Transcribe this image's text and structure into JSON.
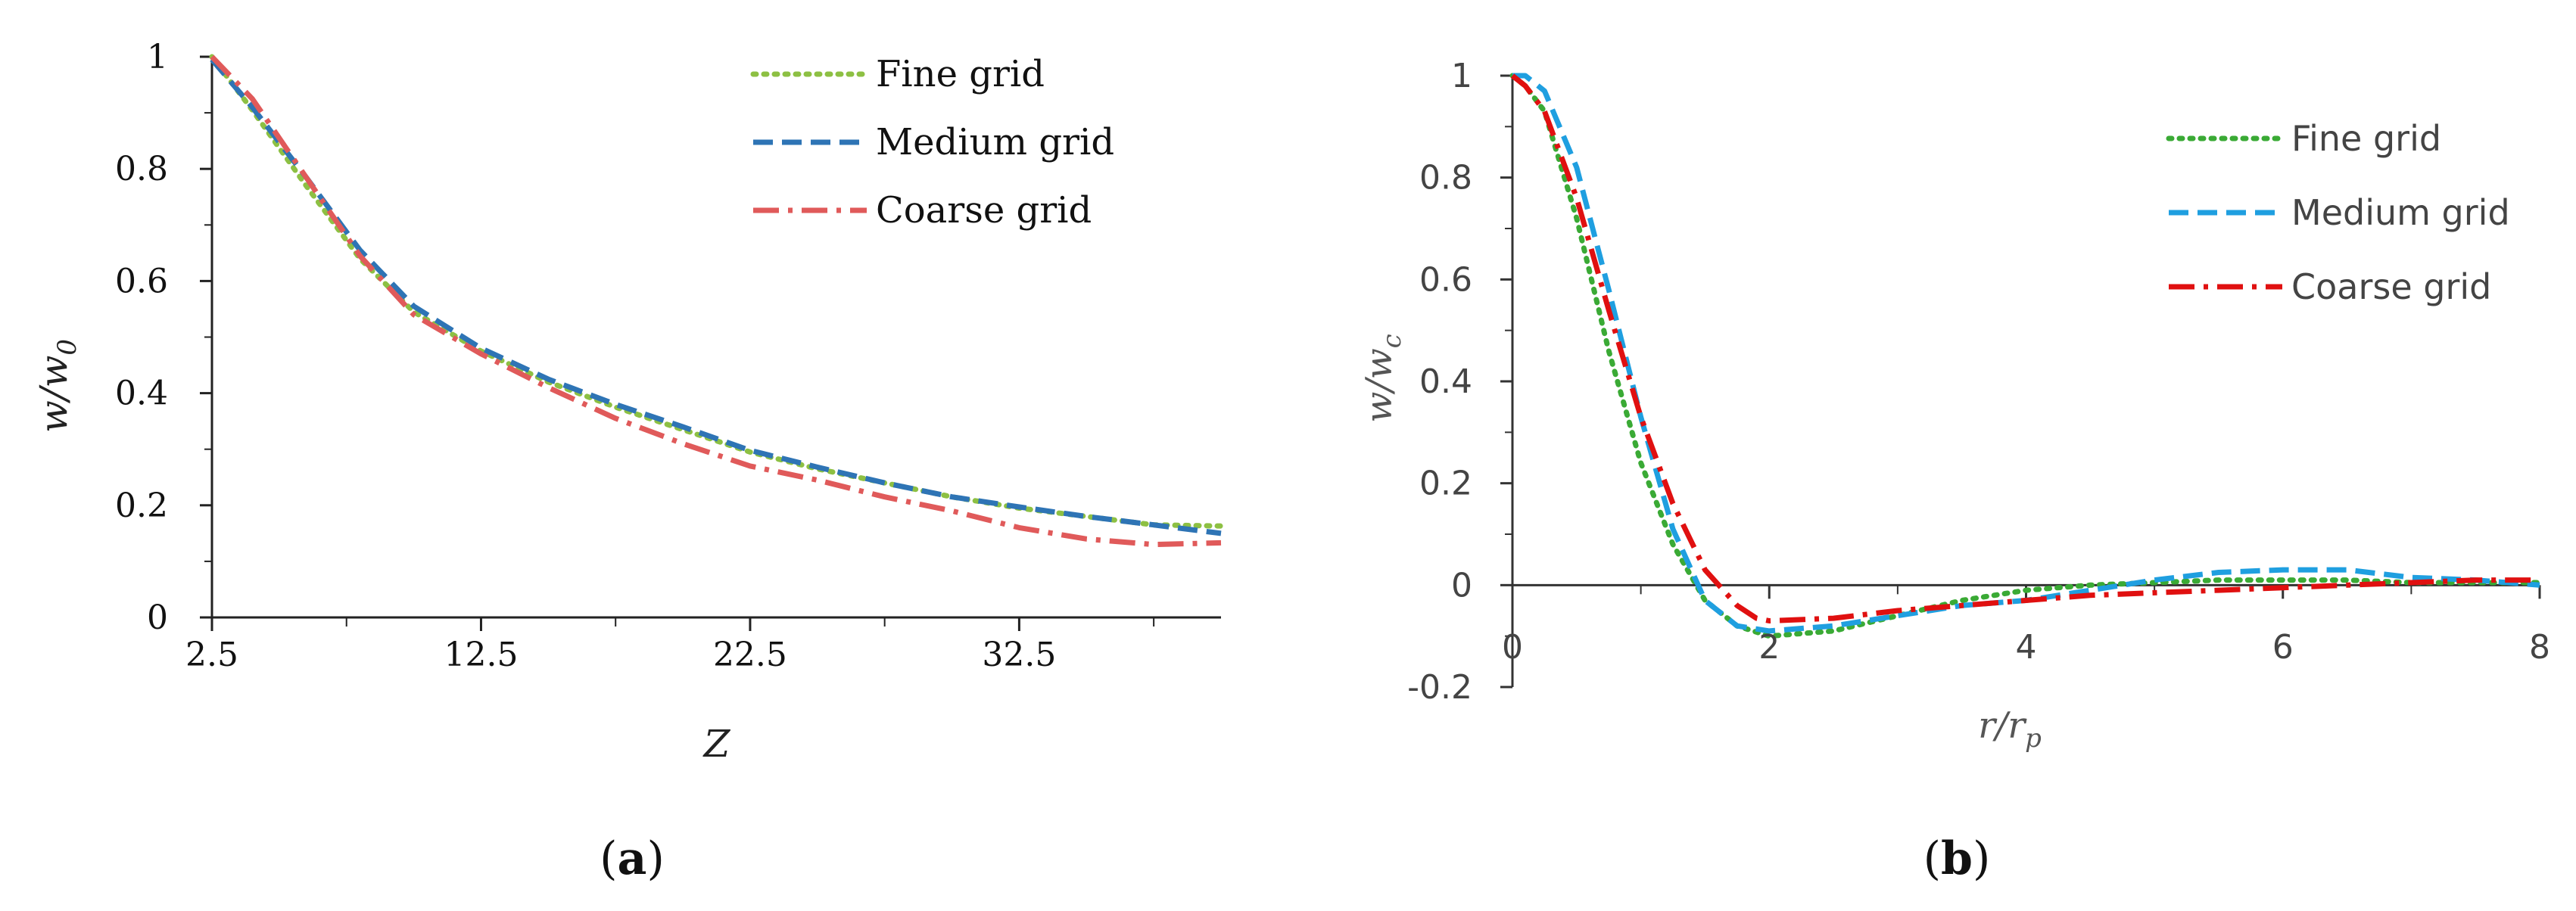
{
  "chart_data": [
    {
      "type": "line",
      "panel_label": "a",
      "title": "",
      "xlabel": {
        "main": "Z",
        "sub": ""
      },
      "ylabel": {
        "main": "w/w",
        "sub": "0"
      },
      "xlim": [
        2.5,
        40
      ],
      "ylim": [
        0,
        1
      ],
      "xticks": [
        2.5,
        12.5,
        22.5,
        32.5
      ],
      "xtick_labels": [
        "2.5",
        "12.5",
        "22.5",
        "32.5"
      ],
      "xminor": [
        7.5,
        17.5,
        27.5,
        37.5
      ],
      "yticks": [
        0,
        0.2,
        0.4,
        0.6,
        0.8,
        1
      ],
      "ytick_labels": [
        "0",
        "0.2",
        "0.4",
        "0.6",
        "0.8",
        "1"
      ],
      "yminor": [
        0.1,
        0.3,
        0.5,
        0.7,
        0.9
      ],
      "legend_position": "top-right",
      "series": [
        {
          "name": "Fine grid",
          "color": "#8dc043",
          "dash": "dotted",
          "x": [
            2.5,
            4,
            6,
            8,
            10,
            12.5,
            15,
            17.5,
            20,
            22.5,
            25,
            27.5,
            30,
            32.5,
            35,
            37.5,
            40
          ],
          "values": [
            1.0,
            0.905,
            0.77,
            0.64,
            0.545,
            0.475,
            0.42,
            0.375,
            0.335,
            0.295,
            0.265,
            0.24,
            0.215,
            0.195,
            0.18,
            0.165,
            0.163
          ]
        },
        {
          "name": "Medium grid",
          "color": "#2e74b5",
          "dash": "dashed",
          "x": [
            2.5,
            4,
            6,
            8,
            10,
            12.5,
            15,
            17.5,
            20,
            22.5,
            25,
            27.5,
            30,
            32.5,
            35,
            37.5,
            40
          ],
          "values": [
            0.995,
            0.91,
            0.785,
            0.655,
            0.555,
            0.48,
            0.425,
            0.38,
            0.34,
            0.298,
            0.268,
            0.24,
            0.215,
            0.197,
            0.18,
            0.165,
            0.15
          ]
        },
        {
          "name": "Coarse grid",
          "color": "#e05a5a",
          "dash": "dashdot",
          "x": [
            2.5,
            4,
            6,
            8,
            10,
            12.5,
            15,
            17.5,
            20,
            22.5,
            25,
            27.5,
            30,
            32.5,
            35,
            37.5,
            40
          ],
          "values": [
            1.0,
            0.925,
            0.785,
            0.645,
            0.54,
            0.47,
            0.41,
            0.355,
            0.31,
            0.27,
            0.245,
            0.215,
            0.19,
            0.16,
            0.14,
            0.13,
            0.133
          ]
        }
      ]
    },
    {
      "type": "line",
      "panel_label": "b",
      "title": "",
      "xlabel": {
        "main": "r/r",
        "sub": "p"
      },
      "ylabel": {
        "main": "w/w",
        "sub": "c"
      },
      "xlim": [
        0,
        8
      ],
      "ylim": [
        -0.2,
        1
      ],
      "xticks": [
        0,
        2,
        4,
        6,
        8
      ],
      "xtick_labels": [
        "0",
        "2",
        "4",
        "6",
        "8"
      ],
      "xminor": [
        1,
        3,
        5,
        7
      ],
      "yticks": [
        -0.2,
        0,
        0.2,
        0.4,
        0.6,
        0.8,
        1
      ],
      "ytick_labels": [
        "-0.2",
        "0",
        "0.2",
        "0.4",
        "0.6",
        "0.8",
        "1"
      ],
      "yminor": [
        -0.1,
        0.1,
        0.3,
        0.5,
        0.7,
        0.9
      ],
      "legend_position": "top-right",
      "series": [
        {
          "name": "Fine grid",
          "color": "#3aaa35",
          "dash": "dotted",
          "x": [
            0,
            0.1,
            0.25,
            0.5,
            0.75,
            1.0,
            1.25,
            1.5,
            1.75,
            2.0,
            2.5,
            3.0,
            3.5,
            4.0,
            4.5,
            5.0,
            5.5,
            6.0,
            6.5,
            7.0,
            7.5,
            8.0
          ],
          "values": [
            1.0,
            0.98,
            0.93,
            0.72,
            0.46,
            0.24,
            0.08,
            -0.03,
            -0.08,
            -0.1,
            -0.09,
            -0.06,
            -0.03,
            -0.01,
            0.0,
            0.005,
            0.01,
            0.01,
            0.01,
            0.005,
            0.005,
            0.005
          ]
        },
        {
          "name": "Medium grid",
          "color": "#1f9fe0",
          "dash": "dashed",
          "x": [
            0,
            0.1,
            0.25,
            0.5,
            0.75,
            1.0,
            1.25,
            1.5,
            1.75,
            2.0,
            2.5,
            3.0,
            3.5,
            4.0,
            4.5,
            5.0,
            5.5,
            6.0,
            6.5,
            7.0,
            7.5,
            8.0
          ],
          "values": [
            1.0,
            1.0,
            0.97,
            0.82,
            0.58,
            0.33,
            0.11,
            -0.03,
            -0.08,
            -0.09,
            -0.08,
            -0.06,
            -0.04,
            -0.03,
            -0.01,
            0.01,
            0.025,
            0.03,
            0.03,
            0.015,
            0.01,
            0.0
          ]
        },
        {
          "name": "Coarse grid",
          "color": "#e01010",
          "dash": "dashdot",
          "x": [
            0,
            0.1,
            0.25,
            0.5,
            0.75,
            1.0,
            1.25,
            1.5,
            1.75,
            1.9,
            2.0,
            2.5,
            3.0,
            3.5,
            4.0,
            4.5,
            5.0,
            5.5,
            6.0,
            6.5,
            7.0,
            7.5,
            8.0
          ],
          "values": [
            1.0,
            0.98,
            0.93,
            0.76,
            0.54,
            0.33,
            0.16,
            0.03,
            -0.04,
            -0.065,
            -0.07,
            -0.065,
            -0.05,
            -0.04,
            -0.03,
            -0.02,
            -0.015,
            -0.01,
            -0.005,
            0.0,
            0.005,
            0.01,
            0.01
          ]
        }
      ]
    }
  ]
}
